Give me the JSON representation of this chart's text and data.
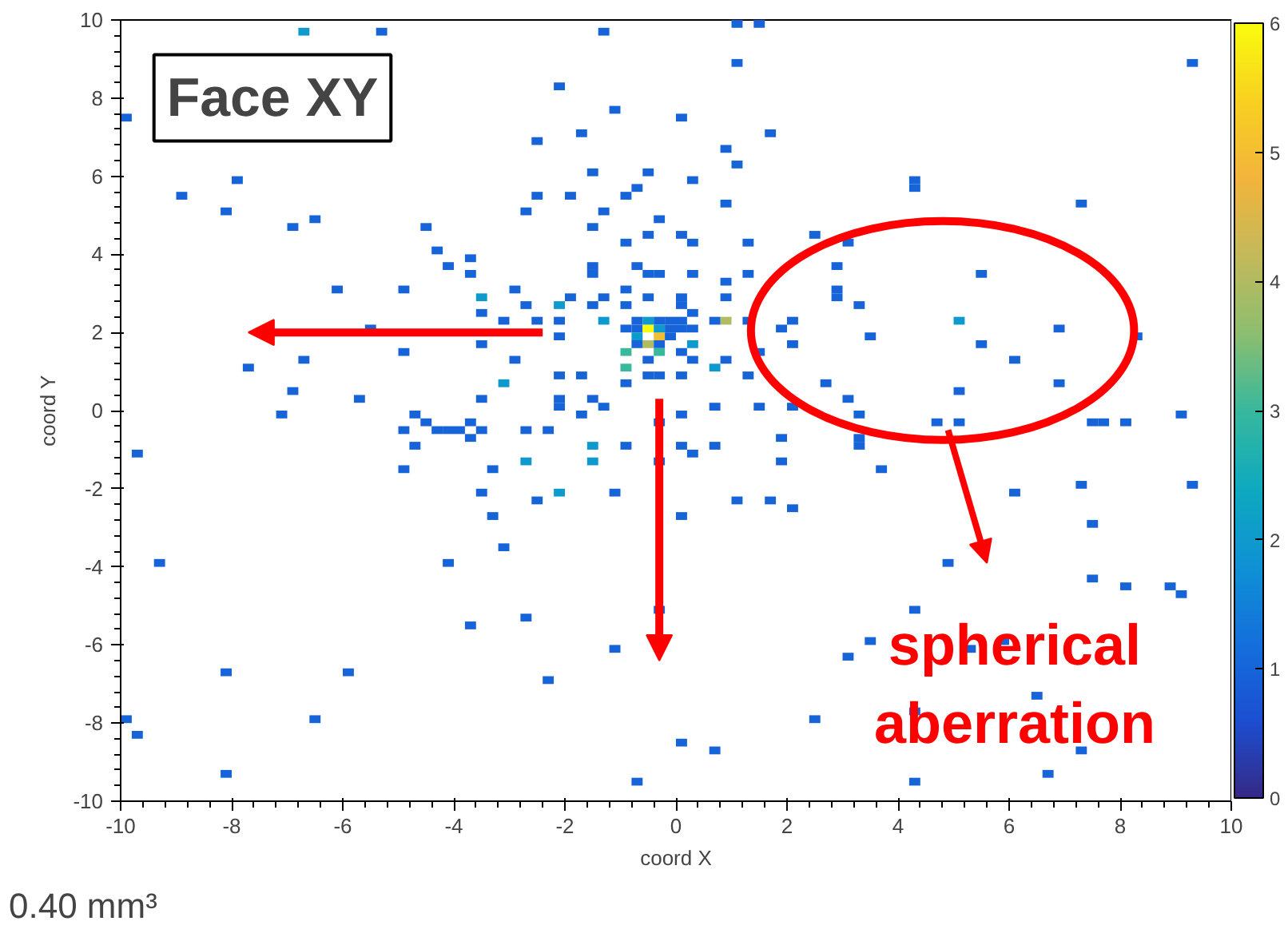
{
  "chart_data": {
    "type": "scatter",
    "marker": "square",
    "xlabel": "coord X",
    "ylabel": "coord Y",
    "xlim": [
      -10,
      10
    ],
    "ylim": [
      -10,
      10
    ],
    "xticks": [
      -10,
      -8,
      -6,
      -4,
      -2,
      0,
      2,
      4,
      6,
      8,
      10
    ],
    "yticks": [
      -10,
      -8,
      -6,
      -4,
      -2,
      0,
      2,
      4,
      6,
      8,
      10
    ],
    "clim": [
      0,
      6
    ],
    "cticks": [
      0,
      1,
      2,
      3,
      4,
      5,
      6
    ],
    "grid": false,
    "annotations": [
      "Face XY",
      "spherical\naberration",
      "0.40 mm³"
    ],
    "x": [
      -6.7,
      -5.3,
      -1.3,
      -9.9,
      -2.1,
      -1.1,
      -1.7,
      -2.5,
      -7.9,
      -8.9,
      -8.1,
      -6.9,
      -6.5,
      -4.5,
      -4.3,
      -4.1,
      -3.7,
      -3.7,
      -6.1,
      -4.9,
      -3.5,
      -2.9,
      -2.7,
      -2.5,
      -3.1,
      -3.5,
      -5.5,
      -3.5,
      -4.9,
      -6.7,
      -7.7,
      -2.9,
      -3.1,
      -6.9,
      -5.7,
      -3.5,
      -1.9,
      -2.5,
      -2.7,
      -1.3,
      -1.5,
      -0.5,
      -0.9,
      -0.7,
      -1.5,
      -0.5,
      -0.3,
      -0.9,
      -1.5,
      -1.5,
      -0.7,
      -0.5,
      -0.3,
      -0.9,
      -0.5,
      -1.9,
      -1.3,
      -1.5,
      -2.1,
      -0.9,
      0.1,
      -1.3,
      -2.1,
      -2.1,
      -0.9,
      -0.7,
      -0.5,
      -0.3,
      -0.5,
      -0.9,
      -0.3,
      -0.9,
      -0.5,
      -0.5,
      -0.3,
      -0.9,
      -2.1,
      -1.7,
      -2.1,
      -1.5,
      -1.3,
      -0.7,
      -0.7,
      -0.5,
      -0.3,
      -0.3,
      -0.7,
      -0.3,
      -0.1,
      -0.1,
      -0.1,
      1.1,
      1.5,
      1.1,
      9.3,
      0.1,
      1.7,
      0.9,
      1.1,
      0.3,
      4.3,
      4.3,
      0.9,
      7.3,
      0.1,
      0.3,
      1.3,
      2.5,
      3.1,
      0.3,
      0.9,
      1.3,
      2.9,
      2.9,
      2.9,
      5.5,
      0.1,
      0.9,
      3.3,
      1.3,
      1.9,
      2.1,
      3.5,
      5.1,
      6.9,
      5.5,
      8.3,
      1.5,
      2.1,
      6.1,
      0.9,
      0.7,
      0.3,
      0.7,
      0.1,
      0.3,
      0.9,
      0.1,
      1.3,
      2.7,
      3.1,
      5.1,
      6.9,
      0.1,
      0.1,
      0.3,
      0.3,
      -7.1,
      -9.7,
      -4.7,
      -4.5,
      -4.9,
      -4.3,
      -4.1,
      -3.9,
      -3.7,
      -3.5,
      -3.7,
      -4.7,
      -4.9,
      -3.3,
      -2.7,
      -2.3,
      -2.7,
      -1.5,
      -1.5,
      -0.9,
      -0.3,
      0.1,
      -0.3,
      -1.7,
      -2.1,
      -3.5,
      -2.5,
      -2.1,
      -1.1,
      -3.3,
      -3.1,
      0.1,
      -9.3,
      -4.1,
      -0.3,
      -3.7,
      -2.7,
      -1.1,
      -8.1,
      -5.9,
      -2.3,
      -6.5,
      -9.7,
      -9.9,
      0.1,
      -8.1,
      -0.7,
      0.1,
      0.7,
      1.5,
      2.1,
      3.3,
      4.7,
      5.1,
      7.5,
      7.7,
      8.1,
      9.1,
      0.3,
      0.7,
      1.9,
      3.3,
      3.3,
      1.9,
      3.7,
      1.1,
      1.7,
      2.1,
      6.1,
      7.3,
      9.3,
      7.5,
      4.9,
      7.5,
      8.1,
      8.9,
      9.1,
      4.3,
      3.5,
      3.1,
      5.3,
      5.9,
      6.5,
      4.3,
      2.5,
      0.7,
      7.3,
      6.7,
      4.3
    ],
    "values": [
      9.7,
      9.7,
      9.7,
      7.5,
      8.3,
      7.7,
      7.1,
      6.9,
      5.9,
      5.5,
      5.1,
      4.7,
      4.9,
      4.7,
      4.1,
      3.7,
      3.9,
      3.5,
      3.1,
      3.1,
      2.9,
      3.1,
      2.7,
      2.3,
      2.3,
      2.5,
      2.1,
      1.7,
      1.5,
      1.3,
      1.1,
      1.3,
      0.7,
      0.5,
      0.3,
      0.3,
      5.5,
      5.5,
      5.1,
      5.1,
      6.1,
      6.1,
      5.5,
      5.7,
      4.7,
      4.5,
      4.9,
      4.3,
      3.7,
      3.5,
      3.7,
      3.5,
      3.5,
      3.1,
      2.9,
      2.9,
      2.9,
      2.7,
      2.7,
      2.7,
      2.7,
      2.3,
      2.3,
      1.9,
      2.1,
      2.1,
      2.1,
      1.9,
      1.7,
      1.5,
      1.5,
      1.1,
      1.3,
      0.9,
      0.9,
      0.7,
      0.9,
      0.9,
      0.3,
      0.3,
      0.1,
      1.9,
      2.3,
      2.3,
      2.1,
      2.3,
      1.7,
      1.7,
      1.9,
      2.1,
      2.3,
      9.9,
      9.9,
      8.9,
      8.9,
      7.5,
      7.1,
      6.7,
      6.3,
      5.9,
      5.9,
      5.7,
      5.3,
      5.3,
      4.5,
      4.3,
      4.3,
      4.5,
      4.3,
      3.5,
      3.3,
      3.5,
      3.7,
      3.1,
      2.9,
      3.5,
      2.9,
      2.9,
      2.7,
      2.3,
      2.1,
      2.3,
      1.9,
      2.3,
      2.1,
      1.7,
      1.9,
      1.5,
      1.7,
      1.3,
      2.3,
      2.3,
      1.7,
      1.1,
      1.5,
      1.3,
      1.3,
      0.9,
      0.9,
      0.7,
      0.3,
      0.5,
      0.7,
      2.1,
      2.3,
      2.1,
      2.5,
      -0.1,
      -1.1,
      -0.1,
      -0.3,
      -0.5,
      -0.5,
      -0.5,
      -0.5,
      -0.3,
      -0.5,
      -0.7,
      -0.9,
      -1.5,
      -1.5,
      -0.5,
      -0.5,
      -1.3,
      -0.9,
      -1.3,
      -0.9,
      -1.3,
      -0.9,
      -0.3,
      -0.1,
      0.1,
      -2.1,
      -2.3,
      -2.1,
      -2.1,
      -2.7,
      -3.5,
      -2.7,
      -3.9,
      -3.9,
      -5.1,
      -5.5,
      -5.3,
      -6.1,
      -6.7,
      -6.7,
      -6.9,
      -7.9,
      -8.3,
      -7.9,
      -8.5,
      -9.3,
      -9.5,
      -0.1,
      0.1,
      0.1,
      0.1,
      -0.1,
      -0.3,
      -0.3,
      -0.3,
      -0.3,
      -0.3,
      -0.1,
      -1.1,
      -0.9,
      -0.7,
      -0.7,
      -0.9,
      -1.3,
      -1.5,
      -2.3,
      -2.3,
      -2.5,
      -2.1,
      -1.9,
      -1.9,
      -2.9,
      -3.9,
      -4.3,
      -4.5,
      -4.5,
      -4.7,
      -5.1,
      -5.9,
      -6.3,
      -6.1,
      -5.9,
      -7.3,
      -7.7,
      -7.9,
      -8.7,
      -8.7,
      -9.3,
      -9.5
    ],
    "cvalues": [
      2,
      1,
      1,
      1,
      1,
      1,
      1,
      1,
      1,
      1,
      1,
      1,
      1,
      1,
      1,
      1,
      1,
      1,
      1,
      1,
      2,
      1,
      1,
      1,
      1,
      1,
      1,
      1,
      1,
      1,
      1,
      1,
      2,
      1,
      1,
      1,
      1,
      1,
      1,
      1,
      1,
      1,
      1,
      1,
      1,
      1,
      1,
      1,
      1,
      1,
      1,
      1,
      1,
      1,
      1,
      1,
      1,
      1,
      2,
      1,
      1,
      2,
      1,
      1,
      1,
      1,
      6,
      5,
      4,
      3,
      3,
      3,
      1,
      1,
      1,
      1,
      1,
      1,
      1,
      1,
      1,
      2,
      1,
      2,
      2,
      1,
      1,
      1,
      1,
      1,
      1,
      1,
      1,
      1,
      1,
      1,
      1,
      1,
      1,
      1,
      1,
      1,
      1,
      1,
      1,
      1,
      1,
      1,
      1,
      1,
      1,
      1,
      1,
      1,
      1,
      1,
      1,
      1,
      1,
      1,
      1,
      1,
      1,
      2,
      1,
      1,
      1,
      1,
      1,
      1,
      4,
      1,
      2,
      2,
      1,
      1,
      1,
      1,
      1,
      1,
      1,
      1,
      1,
      1,
      1,
      1,
      1,
      1,
      1,
      1,
      1,
      1,
      1,
      1,
      1,
      1,
      1,
      1,
      1,
      1,
      1,
      1,
      1,
      2,
      2,
      2,
      1,
      1,
      1,
      1,
      1,
      1,
      1,
      1,
      2,
      1,
      1,
      1,
      1,
      1,
      1,
      1,
      1,
      1,
      1,
      1,
      1,
      1,
      1,
      1,
      1,
      1,
      1,
      1,
      1,
      1,
      1,
      1,
      1,
      1,
      1,
      1,
      1,
      1,
      1,
      1,
      1,
      1,
      1,
      1,
      1,
      1,
      1,
      1,
      1,
      1,
      1,
      1,
      1,
      1,
      1,
      1,
      1,
      1,
      1,
      1,
      1,
      1,
      1,
      1,
      1,
      1,
      1,
      1,
      1,
      1
    ]
  }
}
